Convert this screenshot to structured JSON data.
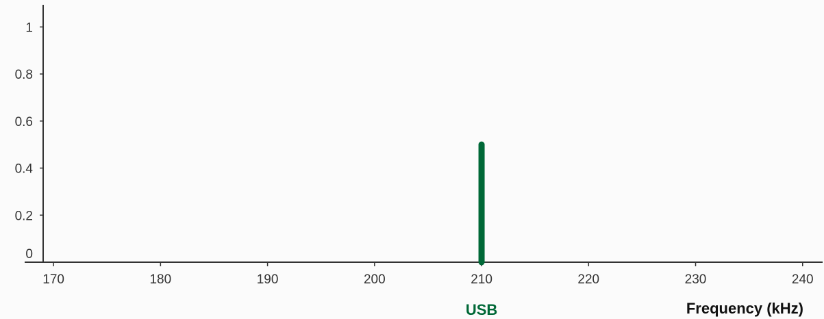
{
  "chart_data": {
    "type": "stem",
    "title": "",
    "xlabel": "Frequency (kHz)",
    "ylabel": "",
    "xlim": [
      165,
      242
    ],
    "ylim": [
      0,
      1.1
    ],
    "x_ticks": [
      170,
      180,
      190,
      200,
      210,
      220,
      230,
      240
    ],
    "y_ticks": [
      0,
      0.2,
      0.4,
      0.6,
      0.8,
      1
    ],
    "y_tick_labels": [
      "0",
      "0.2",
      "0.4",
      "0.6",
      "0.8",
      "1"
    ],
    "grid": false,
    "series": [
      {
        "name": "USB",
        "color": "#006837",
        "x": [
          210
        ],
        "values": [
          0.5
        ]
      }
    ]
  }
}
